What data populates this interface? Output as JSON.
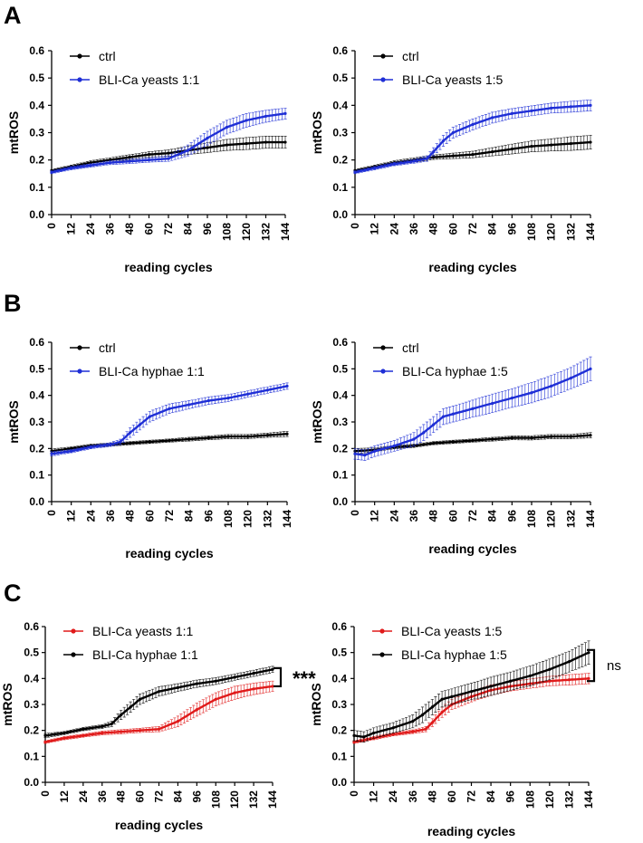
{
  "panels": [
    {
      "letter": "A"
    },
    {
      "letter": "B"
    },
    {
      "letter": "C"
    }
  ],
  "chart_data": [
    {
      "id": "A1",
      "panel": "A",
      "type": "line",
      "xlabel": "reading cycles",
      "ylabel": "mtROS",
      "xlim": [
        0,
        144
      ],
      "ylim": [
        0,
        0.6
      ],
      "xticks": [
        0,
        12,
        24,
        36,
        48,
        60,
        72,
        84,
        96,
        108,
        120,
        132,
        144
      ],
      "yticks": [
        0.0,
        0.1,
        0.2,
        0.3,
        0.4,
        0.5,
        0.6
      ],
      "grid": false,
      "legend": "top-left",
      "series": [
        {
          "name": "ctrl",
          "color": "#000000",
          "x": [
            0,
            12,
            24,
            36,
            48,
            60,
            72,
            84,
            96,
            108,
            120,
            132,
            144
          ],
          "y": [
            0.16,
            0.175,
            0.19,
            0.2,
            0.21,
            0.22,
            0.225,
            0.235,
            0.245,
            0.255,
            0.26,
            0.265,
            0.265
          ],
          "err": [
            0.005,
            0.006,
            0.007,
            0.008,
            0.009,
            0.01,
            0.012,
            0.015,
            0.018,
            0.02,
            0.022,
            0.022,
            0.022
          ]
        },
        {
          "name": "BLI-Ca yeasts 1:1",
          "color": "#1f2fd6",
          "x": [
            0,
            12,
            24,
            36,
            48,
            60,
            72,
            84,
            96,
            108,
            120,
            132,
            144
          ],
          "y": [
            0.155,
            0.17,
            0.18,
            0.19,
            0.195,
            0.2,
            0.205,
            0.235,
            0.28,
            0.32,
            0.345,
            0.36,
            0.37
          ],
          "err": [
            0.005,
            0.006,
            0.006,
            0.007,
            0.008,
            0.008,
            0.01,
            0.02,
            0.025,
            0.025,
            0.025,
            0.022,
            0.02
          ]
        }
      ]
    },
    {
      "id": "A2",
      "panel": "A",
      "type": "line",
      "xlabel": "reading cycles",
      "ylabel": "mtROS",
      "xlim": [
        0,
        144
      ],
      "ylim": [
        0,
        0.6
      ],
      "xticks": [
        0,
        12,
        24,
        36,
        48,
        60,
        72,
        84,
        96,
        108,
        120,
        132,
        144
      ],
      "yticks": [
        0.0,
        0.1,
        0.2,
        0.3,
        0.4,
        0.5,
        0.6
      ],
      "grid": false,
      "legend": "top-left",
      "series": [
        {
          "name": "ctrl",
          "color": "#000000",
          "x": [
            0,
            12,
            24,
            36,
            48,
            60,
            72,
            84,
            96,
            108,
            120,
            132,
            144
          ],
          "y": [
            0.16,
            0.175,
            0.19,
            0.2,
            0.21,
            0.215,
            0.22,
            0.23,
            0.24,
            0.25,
            0.255,
            0.26,
            0.265
          ],
          "err": [
            0.005,
            0.006,
            0.007,
            0.008,
            0.008,
            0.01,
            0.012,
            0.015,
            0.018,
            0.02,
            0.022,
            0.025,
            0.025
          ]
        },
        {
          "name": "BLI-Ca yeasts 1:5",
          "color": "#1f2fd6",
          "x": [
            0,
            12,
            24,
            36,
            44,
            48,
            54,
            60,
            72,
            84,
            96,
            108,
            120,
            132,
            144
          ],
          "y": [
            0.155,
            0.17,
            0.185,
            0.195,
            0.205,
            0.23,
            0.27,
            0.3,
            0.33,
            0.355,
            0.37,
            0.38,
            0.39,
            0.395,
            0.4
          ],
          "err": [
            0.005,
            0.006,
            0.006,
            0.007,
            0.01,
            0.015,
            0.02,
            0.02,
            0.02,
            0.02,
            0.018,
            0.018,
            0.018,
            0.02,
            0.02
          ]
        }
      ]
    },
    {
      "id": "B1",
      "panel": "B",
      "type": "line",
      "xlabel": "reading cycles",
      "ylabel": "mtROS",
      "xlim": [
        0,
        144
      ],
      "ylim": [
        0,
        0.6
      ],
      "xticks": [
        0,
        12,
        24,
        36,
        48,
        60,
        72,
        84,
        96,
        108,
        120,
        132,
        144
      ],
      "yticks": [
        0.0,
        0.1,
        0.2,
        0.3,
        0.4,
        0.5,
        0.6
      ],
      "grid": false,
      "legend": "top-left",
      "series": [
        {
          "name": "ctrl",
          "color": "#000000",
          "x": [
            0,
            12,
            24,
            36,
            48,
            60,
            72,
            84,
            96,
            108,
            120,
            132,
            144
          ],
          "y": [
            0.19,
            0.2,
            0.21,
            0.215,
            0.22,
            0.225,
            0.23,
            0.235,
            0.24,
            0.245,
            0.245,
            0.25,
            0.255
          ],
          "err": [
            0.008,
            0.006,
            0.006,
            0.006,
            0.006,
            0.006,
            0.006,
            0.007,
            0.007,
            0.008,
            0.008,
            0.008,
            0.01
          ]
        },
        {
          "name": "BLI-Ca hyphae 1:1",
          "color": "#1f2fd6",
          "x": [
            0,
            12,
            24,
            36,
            42,
            48,
            54,
            60,
            72,
            84,
            96,
            108,
            120,
            132,
            144
          ],
          "y": [
            0.18,
            0.19,
            0.205,
            0.215,
            0.225,
            0.26,
            0.29,
            0.32,
            0.35,
            0.365,
            0.38,
            0.39,
            0.405,
            0.42,
            0.435
          ],
          "err": [
            0.008,
            0.006,
            0.006,
            0.007,
            0.01,
            0.018,
            0.02,
            0.02,
            0.018,
            0.015,
            0.014,
            0.013,
            0.012,
            0.012,
            0.012
          ]
        }
      ]
    },
    {
      "id": "B2",
      "panel": "B",
      "type": "line",
      "xlabel": "reading cycles",
      "ylabel": "mtROS",
      "xlim": [
        0,
        144
      ],
      "ylim": [
        0,
        0.6
      ],
      "xticks": [
        0,
        12,
        24,
        36,
        48,
        60,
        72,
        84,
        96,
        108,
        120,
        132,
        144
      ],
      "yticks": [
        0.0,
        0.1,
        0.2,
        0.3,
        0.4,
        0.5,
        0.6
      ],
      "grid": false,
      "legend": "top-left",
      "series": [
        {
          "name": "ctrl",
          "color": "#000000",
          "x": [
            0,
            12,
            24,
            36,
            48,
            60,
            72,
            84,
            96,
            108,
            120,
            132,
            144
          ],
          "y": [
            0.19,
            0.195,
            0.205,
            0.21,
            0.22,
            0.225,
            0.23,
            0.235,
            0.24,
            0.24,
            0.245,
            0.245,
            0.25
          ],
          "err": [
            0.01,
            0.007,
            0.006,
            0.006,
            0.006,
            0.006,
            0.006,
            0.007,
            0.007,
            0.008,
            0.008,
            0.008,
            0.01
          ]
        },
        {
          "name": "BLI-Ca hyphae 1:5",
          "color": "#1f2fd6",
          "x": [
            0,
            6,
            12,
            24,
            36,
            42,
            48,
            54,
            60,
            72,
            84,
            96,
            108,
            120,
            132,
            144
          ],
          "y": [
            0.18,
            0.175,
            0.19,
            0.21,
            0.235,
            0.26,
            0.29,
            0.32,
            0.33,
            0.35,
            0.37,
            0.39,
            0.41,
            0.435,
            0.465,
            0.5
          ],
          "err": [
            0.02,
            0.02,
            0.02,
            0.02,
            0.025,
            0.03,
            0.03,
            0.03,
            0.03,
            0.032,
            0.035,
            0.035,
            0.038,
            0.04,
            0.04,
            0.045
          ]
        }
      ]
    },
    {
      "id": "C1",
      "panel": "C",
      "type": "line",
      "xlabel": "reading cycles",
      "ylabel": "mtROS",
      "xlim": [
        0,
        144
      ],
      "ylim": [
        0,
        0.6
      ],
      "xticks": [
        0,
        12,
        24,
        36,
        48,
        60,
        72,
        84,
        96,
        108,
        120,
        132,
        144
      ],
      "yticks": [
        0.0,
        0.1,
        0.2,
        0.3,
        0.4,
        0.5,
        0.6
      ],
      "grid": false,
      "legend": "top-left",
      "annotation": "***",
      "series": [
        {
          "name": "BLI-Ca yeasts 1:1",
          "color": "#e01a1a",
          "x": [
            0,
            12,
            24,
            36,
            48,
            60,
            72,
            84,
            96,
            108,
            120,
            132,
            144
          ],
          "y": [
            0.155,
            0.17,
            0.18,
            0.19,
            0.195,
            0.2,
            0.205,
            0.235,
            0.28,
            0.32,
            0.345,
            0.36,
            0.37
          ],
          "err": [
            0.005,
            0.006,
            0.006,
            0.007,
            0.008,
            0.008,
            0.01,
            0.02,
            0.025,
            0.025,
            0.025,
            0.022,
            0.02
          ]
        },
        {
          "name": "BLI-Ca hyphae 1:1",
          "color": "#000000",
          "x": [
            0,
            12,
            24,
            36,
            42,
            48,
            54,
            60,
            72,
            84,
            96,
            108,
            120,
            132,
            144
          ],
          "y": [
            0.18,
            0.19,
            0.205,
            0.215,
            0.225,
            0.26,
            0.29,
            0.32,
            0.35,
            0.365,
            0.38,
            0.39,
            0.405,
            0.42,
            0.435
          ],
          "err": [
            0.008,
            0.006,
            0.006,
            0.007,
            0.01,
            0.018,
            0.02,
            0.02,
            0.018,
            0.015,
            0.014,
            0.013,
            0.012,
            0.012,
            0.012
          ]
        }
      ]
    },
    {
      "id": "C2",
      "panel": "C",
      "type": "line",
      "xlabel": "reading cycles",
      "ylabel": "mtROS",
      "xlim": [
        0,
        144
      ],
      "ylim": [
        0,
        0.6
      ],
      "xticks": [
        0,
        12,
        24,
        36,
        48,
        60,
        72,
        84,
        96,
        108,
        120,
        132,
        144
      ],
      "yticks": [
        0.0,
        0.1,
        0.2,
        0.3,
        0.4,
        0.5,
        0.6
      ],
      "grid": false,
      "legend": "top-left",
      "annotation": "ns",
      "series": [
        {
          "name": "BLI-Ca yeasts 1:5",
          "color": "#e01a1a",
          "x": [
            0,
            12,
            24,
            36,
            44,
            48,
            54,
            60,
            72,
            84,
            96,
            108,
            120,
            132,
            144
          ],
          "y": [
            0.155,
            0.17,
            0.185,
            0.195,
            0.205,
            0.23,
            0.27,
            0.3,
            0.33,
            0.355,
            0.37,
            0.38,
            0.39,
            0.395,
            0.4
          ],
          "err": [
            0.005,
            0.006,
            0.006,
            0.007,
            0.01,
            0.015,
            0.02,
            0.02,
            0.02,
            0.02,
            0.018,
            0.018,
            0.018,
            0.02,
            0.02
          ]
        },
        {
          "name": "BLI-Ca hyphae 1:5",
          "color": "#000000",
          "x": [
            0,
            6,
            12,
            24,
            36,
            42,
            48,
            54,
            60,
            72,
            84,
            96,
            108,
            120,
            132,
            144
          ],
          "y": [
            0.18,
            0.175,
            0.19,
            0.21,
            0.235,
            0.26,
            0.29,
            0.32,
            0.33,
            0.35,
            0.37,
            0.39,
            0.41,
            0.435,
            0.465,
            0.5
          ],
          "err": [
            0.02,
            0.02,
            0.02,
            0.02,
            0.025,
            0.03,
            0.03,
            0.03,
            0.03,
            0.032,
            0.035,
            0.035,
            0.038,
            0.04,
            0.04,
            0.045
          ]
        }
      ]
    }
  ]
}
